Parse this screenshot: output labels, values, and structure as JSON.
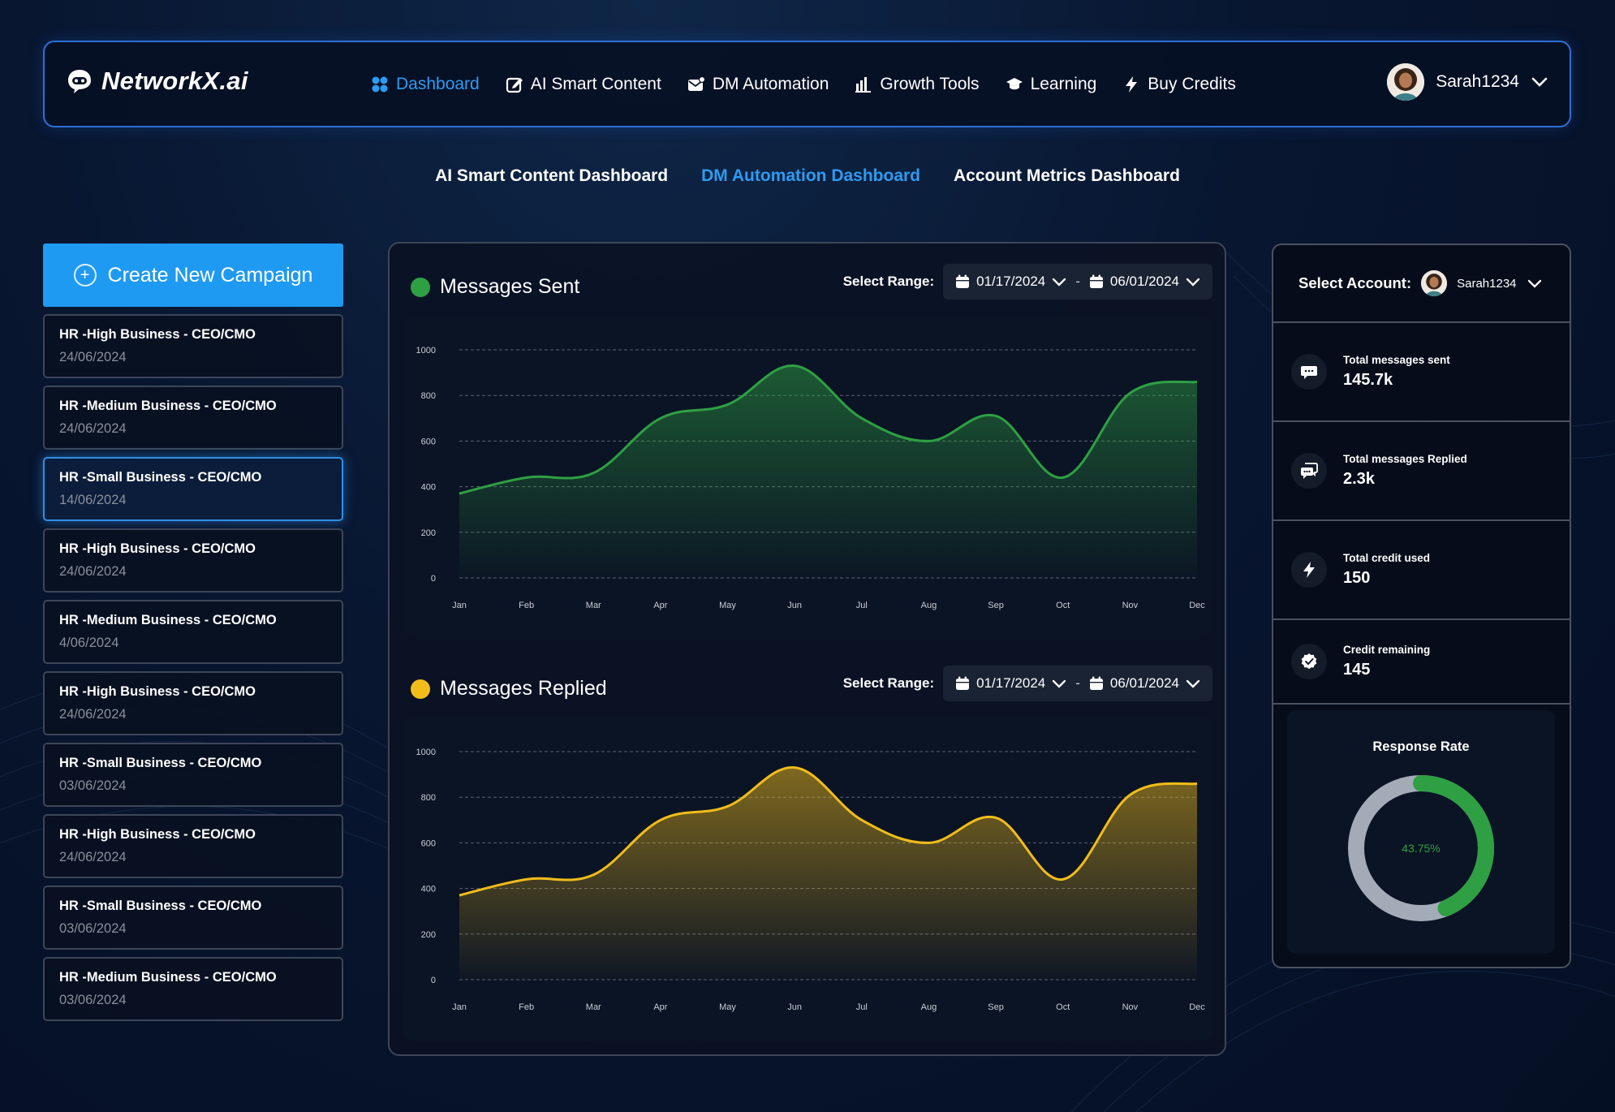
{
  "brand": {
    "name": "NetworkX.ai"
  },
  "nav": {
    "items": [
      {
        "label": "Dashboard",
        "icon": "grid-icon",
        "active": true
      },
      {
        "label": "AI Smart Content",
        "icon": "edit-icon",
        "active": false
      },
      {
        "label": "DM Automation",
        "icon": "mail-icon",
        "active": false
      },
      {
        "label": "Growth Tools",
        "icon": "bar-chart-icon",
        "active": false
      },
      {
        "label": "Learning",
        "icon": "graduation-cap-icon",
        "active": false
      },
      {
        "label": "Buy Credits",
        "icon": "lightning-icon",
        "active": false
      }
    ],
    "user": {
      "name": "Sarah1234"
    }
  },
  "subtabs": [
    {
      "label": "AI Smart Content Dashboard",
      "active": false
    },
    {
      "label": "DM Automation Dashboard",
      "active": true
    },
    {
      "label": "Account Metrics Dashboard",
      "active": false
    }
  ],
  "sidebar": {
    "create_label": "Create New Campaign",
    "campaigns": [
      {
        "title": "HR -High Business - CEO/CMO",
        "date": "24/06/2024"
      },
      {
        "title": "HR -Medium Business - CEO/CMO",
        "date": "24/06/2024"
      },
      {
        "title": "HR -Small Business - CEO/CMO",
        "date": "14/06/2024",
        "selected": true
      },
      {
        "title": "HR -High Business - CEO/CMO",
        "date": "24/06/2024"
      },
      {
        "title": "HR -Medium Business - CEO/CMO",
        "date": "4/06/2024"
      },
      {
        "title": "HR -High Business - CEO/CMO",
        "date": "24/06/2024"
      },
      {
        "title": "HR -Small Business - CEO/CMO",
        "date": "03/06/2024"
      },
      {
        "title": "HR -High Business - CEO/CMO",
        "date": "24/06/2024"
      },
      {
        "title": "HR -Small Business - CEO/CMO",
        "date": "03/06/2024"
      },
      {
        "title": "HR -Medium Business - CEO/CMO",
        "date": "03/06/2024"
      }
    ]
  },
  "charts": {
    "range_label": "Select Range:",
    "range_separator": "-",
    "sent": {
      "title": "Messages Sent",
      "start": "01/17/2024",
      "end": "06/01/2024",
      "color": "#2ea043"
    },
    "replied": {
      "title": "Messages Replied",
      "start": "01/17/2024",
      "end": "06/01/2024",
      "color": "#f2bd1a"
    }
  },
  "chart_data": [
    {
      "type": "area",
      "title": "Messages Sent",
      "x": [
        "Jan",
        "Feb",
        "Mar",
        "Apr",
        "May",
        "Jun",
        "Jul",
        "Aug",
        "Sep",
        "Oct",
        "Nov",
        "Dec"
      ],
      "series": [
        {
          "name": "Messages Sent",
          "values": [
            370,
            440,
            460,
            700,
            760,
            930,
            700,
            600,
            710,
            440,
            810,
            860
          ]
        }
      ],
      "yticks": [
        0,
        200,
        400,
        600,
        800,
        1000
      ],
      "ylim": [
        0,
        1000
      ],
      "grid": true
    },
    {
      "type": "area",
      "title": "Messages Replied",
      "x": [
        "Jan",
        "Feb",
        "Mar",
        "Apr",
        "May",
        "Jun",
        "Jul",
        "Aug",
        "Sep",
        "Oct",
        "Nov",
        "Dec"
      ],
      "series": [
        {
          "name": "Messages Replied",
          "values": [
            370,
            440,
            460,
            700,
            760,
            930,
            700,
            600,
            710,
            440,
            810,
            860
          ]
        }
      ],
      "yticks": [
        0,
        200,
        400,
        600,
        800,
        1000
      ],
      "ylim": [
        0,
        1000
      ],
      "grid": true
    }
  ],
  "account": {
    "label": "Select Account:",
    "name": "Sarah1234",
    "stats": [
      {
        "label": "Total  messages sent",
        "value": "145.7k",
        "icon": "message-icon"
      },
      {
        "label": "Total  messages Replied",
        "value": "2.3k",
        "icon": "chat-reply-icon"
      },
      {
        "label": "Total credit used",
        "value": "150",
        "icon": "lightning-icon"
      },
      {
        "label": "Credit remaining",
        "value": "145",
        "icon": "badge-check-icon"
      }
    ],
    "response_rate": {
      "title": "Response Rate",
      "value_text": "43.75%",
      "fraction": 0.4375,
      "color": "#2ea043",
      "track_color": "#a4abb8"
    }
  }
}
